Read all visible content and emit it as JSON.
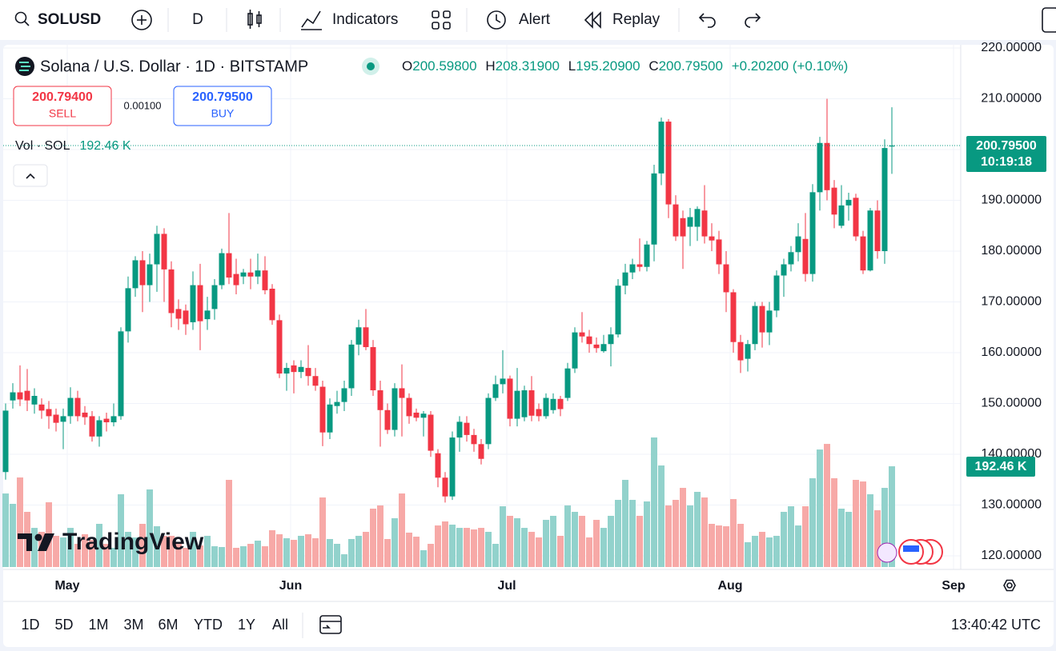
{
  "toolbar": {
    "symbol": "SOLUSD",
    "interval": "D",
    "indicators": "Indicators",
    "alert": "Alert",
    "replay": "Replay"
  },
  "legend": {
    "ohlc": [
      {
        "key": "O",
        "value": "200.59800"
      },
      {
        "key": "H",
        "value": "208.31900"
      },
      {
        "key": "L",
        "value": "195.20900"
      },
      {
        "key": "C",
        "value": "200.79500"
      }
    ],
    "change": "+0.20200 (+0.10%)",
    "volume_title": "Vol · SOL",
    "volume_value": "192.46 K"
  },
  "trade": {
    "sell_price": "200.79400",
    "sell": "SELL",
    "spread": "0.00100",
    "buy_price": "200.79500",
    "buy": "BUY"
  },
  "watermark": "TradingView",
  "footer": {
    "ranges": [
      "1D",
      "5D",
      "1M",
      "3M",
      "6M",
      "YTD",
      "1Y",
      "All"
    ],
    "clock": "13:40:42 UTC"
  },
  "chart_data": {
    "type": "candlestick",
    "title": "Solana / U.S. Dollar · 1D · BITSTAMP",
    "categories": [
      null,
      null,
      null,
      null,
      null,
      null,
      null,
      null,
      null,
      "May",
      null,
      null,
      null,
      null,
      null,
      null,
      null,
      null,
      null,
      null,
      null,
      null,
      null,
      null,
      null,
      null,
      null,
      null,
      null,
      null,
      null,
      null,
      null,
      null,
      null,
      null,
      null,
      null,
      null,
      null,
      "Jun",
      null,
      null,
      null,
      null,
      null,
      null,
      null,
      null,
      null,
      null,
      null,
      null,
      null,
      null,
      null,
      null,
      null,
      null,
      null,
      null,
      null,
      null,
      null,
      null,
      null,
      null,
      null,
      null,
      null,
      "Jul",
      null,
      null,
      null,
      null,
      null,
      null,
      null,
      null,
      null,
      null,
      null,
      null,
      null,
      null,
      null,
      null,
      null,
      null,
      null,
      null,
      null,
      null,
      null,
      null,
      null,
      null,
      null,
      null,
      null,
      null,
      "Aug",
      null,
      null,
      null,
      null,
      null,
      null,
      null,
      null,
      null,
      null,
      null,
      null,
      null,
      null,
      null,
      null,
      null,
      null,
      null,
      null,
      null,
      null,
      null,
      null,
      null,
      null,
      null,
      null,
      null,
      null,
      "Sep"
    ],
    "open": [
      136.5,
      150.6,
      152.2,
      152.5,
      149.8,
      149.8,
      148.9,
      147.8,
      146.4,
      147.5,
      151.1,
      148.2,
      147.5,
      143.5,
      147.0,
      146.3,
      147.5,
      164.2,
      172.7,
      178.2,
      173.3,
      177.4,
      183.4,
      176.4,
      168.6,
      168.3,
      166,
      173.3,
      166.6,
      168.6,
      173.3,
      179.6,
      175.5,
      175,
      175.8,
      175,
      176.2,
      172.6,
      166.4,
      155.9,
      157.5,
      156.2,
      157,
      155.4,
      153.3,
      144.3,
      149.5,
      150.3,
      153.0,
      161.6,
      165,
      161.1,
      152.6,
      148.7,
      144.8,
      153,
      151.1,
      148.2,
      147.2,
      147.8,
      140.2,
      135.4,
      131.7,
      143.3,
      146.2,
      143.8,
      142.0,
      142,
      151.1,
      153.8,
      154.9,
      147,
      147.3,
      152.6,
      148.9,
      147.5,
      148.7,
      150.9,
      151.1,
      156.9,
      164.0,
      163.2,
      161.6,
      160.3,
      161.7,
      163.6,
      173.2,
      175.8,
      177.4,
      176.9,
      181.3,
      195.3,
      205.5,
      189.2,
      186.5,
      184.8,
      184.8,
      188,
      182.9,
      182.3,
      177.4,
      171.9,
      162.1,
      158.8,
      161.7,
      169.2,
      164,
      168.3,
      175.2,
      177.4,
      179.8,
      182.4,
      175.5,
      191.6,
      201.3,
      192.5,
      185.0,
      189,
      190.5,
      182.9,
      176.2,
      188,
      180.0,
      200.598,
      null,
      null,
      null,
      null,
      null,
      null,
      null,
      null,
      null
    ],
    "high": [
      150,
      154,
      157.5,
      156.8,
      153,
      151,
      150.5,
      149,
      149,
      153.2,
      152.5,
      149.5,
      148.5,
      147.5,
      148.2,
      150,
      165,
      175,
      179,
      180,
      179.5,
      185,
      184.5,
      178,
      170.5,
      169.5,
      176,
      177.5,
      171,
      174.5,
      180.5,
      187.5,
      178.5,
      176.5,
      178.5,
      179.5,
      179,
      173.5,
      167.5,
      158,
      158.5,
      158.5,
      161.5,
      157,
      154.5,
      151,
      152.5,
      154.5,
      162.5,
      166.5,
      168.6,
      162.5,
      154.5,
      150,
      154,
      157.7,
      152,
      149,
      148.5,
      148.5,
      141,
      136.5,
      144.5,
      147.5,
      147.5,
      145,
      143,
      152,
      155.5,
      160.5,
      155.5,
      157,
      153.5,
      155.4,
      150,
      152,
      152,
      151.5,
      158,
      165,
      168,
      164.5,
      163,
      163.5,
      165,
      174.5,
      177.5,
      178.5,
      182.5,
      182,
      197,
      206.3,
      206,
      191,
      188,
      188.5,
      188.8,
      193,
      185.5,
      184,
      180,
      172.5,
      163.5,
      162.5,
      170,
      170,
      170,
      176.2,
      178.5,
      181,
      185.5,
      187.5,
      193.2,
      202.5,
      210,
      194,
      193,
      191.5,
      191.3,
      184,
      188.5,
      190,
      202,
      208.319,
      null,
      null,
      null,
      null,
      null,
      null,
      null,
      null,
      null
    ],
    "low": [
      135,
      149,
      149.5,
      148.5,
      148,
      147,
      145,
      144.5,
      141,
      146,
      146.5,
      145.8,
      142.5,
      141.5,
      144.5,
      145.5,
      146.8,
      162,
      171,
      168,
      170,
      172,
      170,
      165,
      164.5,
      163.5,
      164.5,
      160.5,
      164.5,
      166.5,
      172.5,
      173.5,
      171.5,
      173.5,
      172.5,
      173.5,
      171.5,
      165.5,
      155,
      152.5,
      152,
      155,
      153.5,
      152.5,
      141.6,
      143,
      148,
      148.5,
      151.5,
      159.5,
      160.5,
      151.5,
      141.5,
      144,
      143.5,
      143.5,
      146,
      146.5,
      143.5,
      139.5,
      133.5,
      130.5,
      131,
      140.5,
      142.5,
      140.5,
      138,
      141,
      150.5,
      152,
      145.5,
      145.5,
      146.5,
      146.5,
      146.5,
      147,
      148,
      147.5,
      150.5,
      156,
      162,
      160,
      160,
      160,
      157.3,
      163,
      171.5,
      174.5,
      176,
      176,
      178,
      193,
      186.5,
      182,
      176.5,
      181,
      182,
      181.5,
      180,
      175.5,
      168,
      160,
      156,
      156.3,
      160.5,
      161,
      161.5,
      167,
      171,
      176,
      178,
      174,
      174,
      188,
      190,
      184.5,
      184.5,
      186,
      182,
      175.5,
      176,
      178.5,
      177.5,
      195.209,
      null,
      null,
      null,
      null,
      null,
      null,
      null,
      null,
      null
    ],
    "close": [
      148.6,
      152.2,
      150.8,
      150.6,
      151.5,
      148.6,
      147.5,
      146.2,
      147.5,
      151.1,
      147.5,
      147.3,
      143.5,
      146.7,
      146.3,
      147.5,
      164.2,
      172.7,
      178.2,
      173.3,
      177.4,
      183.4,
      176.4,
      167.8,
      166.7,
      165.6,
      173.3,
      166.2,
      168.3,
      173.3,
      179.6,
      174.8,
      173.3,
      175.8,
      175.0,
      176.2,
      172.3,
      166.4,
      155.9,
      157.0,
      156.2,
      157.2,
      155.4,
      153.5,
      144.3,
      149.8,
      150.3,
      153.0,
      161.6,
      165.0,
      161.1,
      152.6,
      148.7,
      144.8,
      153.0,
      151.1,
      147.5,
      147.2,
      148.0,
      140.7,
      135.4,
      131.7,
      143.3,
      146.4,
      143.8,
      142.0,
      139.1,
      151.1,
      153.8,
      154.9,
      147.0,
      152.5,
      152.6,
      147.6,
      147.5,
      151.1,
      150.9,
      148.9,
      156.9,
      164.0,
      163.2,
      161.7,
      160.9,
      161.7,
      163.6,
      173.2,
      175.8,
      177.4,
      176.9,
      181.3,
      195.3,
      205.5,
      189.2,
      182.9,
      182.9,
      186.7,
      188.3,
      182.9,
      182.1,
      177.4,
      171.9,
      162.1,
      158.5,
      161.7,
      169.2,
      164,
      168.3,
      175.2,
      177.4,
      179.8,
      182.9,
      175.5,
      191.6,
      201.3,
      192.0,
      187.2,
      189.0,
      190.1,
      182.9,
      176.2,
      188.0,
      180.0,
      200.3,
      200.795,
      null,
      null,
      null,
      null,
      null,
      null,
      null,
      null,
      null
    ],
    "volume": [
      140.5,
      120.7,
      171.1,
      105.4,
      74.8,
      67.2,
      123.7,
      59.6,
      56.5,
      74.8,
      44.3,
      62.6,
      51.9,
      82.5,
      44.3,
      36.7,
      139.0,
      67.2,
      56.5,
      82.5,
      148.2,
      77.9,
      59.6,
      59.6,
      44.3,
      36.7,
      67.2,
      41.2,
      59.6,
      39.7,
      38.2,
      166.5,
      36.7,
      39.7,
      44.3,
      50.4,
      39.7,
      70.3,
      62.6,
      55.0,
      51.9,
      59.6,
      62.6,
      55.0,
      132.9,
      53.5,
      44.3,
      24.4,
      53.5,
      59.6,
      67.2,
      111.5,
      117.6,
      53.5,
      93.2,
      140.5,
      65.7,
      58.0,
      32.1,
      44.3,
      79.4,
      87.1,
      81.0,
      74.8,
      74.8,
      71.8,
      74.8,
      67.2,
      44.3,
      116.1,
      97.8,
      93.2,
      74.8,
      67.2,
      56.5,
      90.1,
      97.8,
      59.6,
      117.6,
      105.4,
      97.8,
      56.5,
      90.1,
      74.8,
      97.8,
      128.3,
      166.5,
      128.3,
      97.8,
      125.3,
      247.5,
      194.0,
      117.6,
      128.3,
      151.2,
      117.6,
      143.6,
      132.9,
      82.5,
      79.4,
      77.9,
      129.8,
      82.5,
      47.4,
      59.6,
      67.2,
      56.5,
      59.6,
      105.4,
      116.1,
      79.4,
      116.1,
      169.6,
      224.5,
      235.2,
      169.6,
      111.5,
      105.4,
      166.5,
      163.4,
      139.0,
      108.5,
      151.2,
      192.46,
      null,
      null,
      null,
      null,
      null,
      null,
      null,
      null,
      null
    ],
    "up_color": "#089981",
    "down_color": "#f23645",
    "volume_up_color": "#92d2cc",
    "volume_down_color": "#f7a9a7",
    "ylim": [
      117.8,
      220
    ],
    "yticks": [
      {
        "value": 120,
        "label": "120.00000"
      },
      {
        "value": 130,
        "label": "130.00000"
      },
      {
        "value": 140,
        "label": "140.00000"
      },
      {
        "value": 150,
        "label": "150.00000"
      },
      {
        "value": 160,
        "label": "160.00000"
      },
      {
        "value": 170,
        "label": "170.00000"
      },
      {
        "value": 180,
        "label": "180.00000"
      },
      {
        "value": 190,
        "label": "190.00000"
      },
      {
        "value": 200,
        "label": "200.00000"
      },
      {
        "value": 210,
        "label": "210.00000"
      },
      {
        "value": 220,
        "label": "220.00000"
      }
    ],
    "grid": true,
    "last_price_label": "200.79500",
    "countdown": "10:19:18",
    "volume_badge": "192.46 K"
  }
}
